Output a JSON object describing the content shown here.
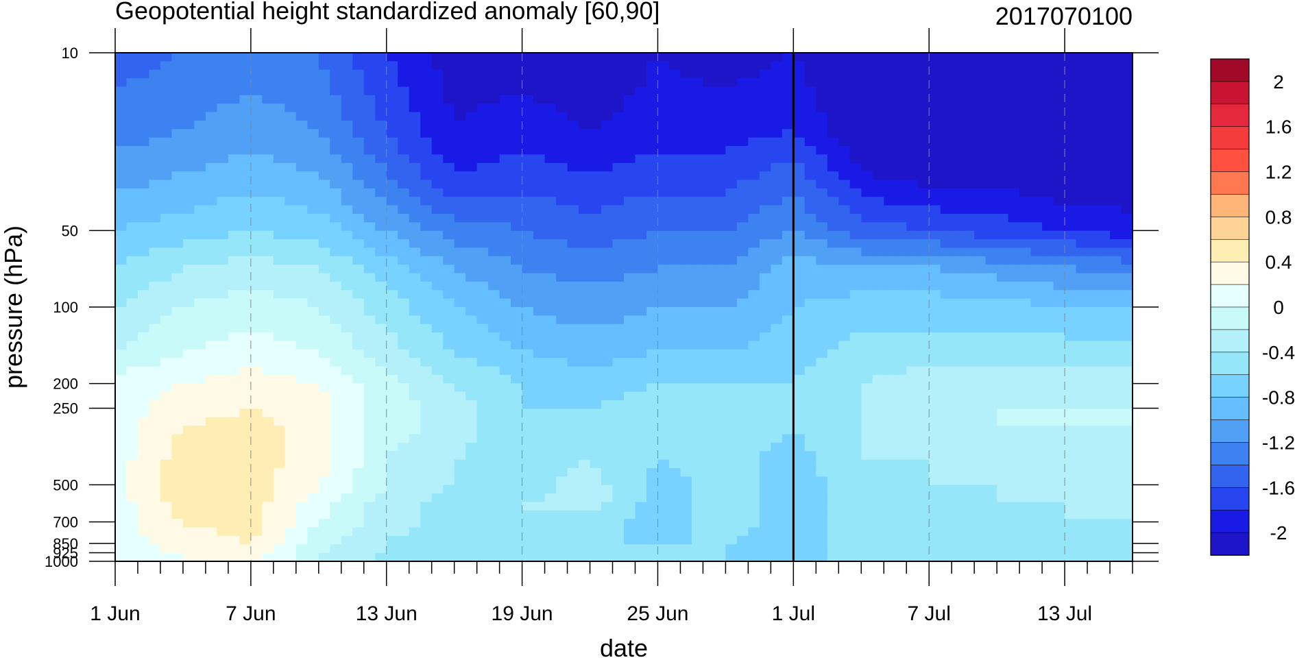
{
  "chart_data": {
    "type": "heatmap",
    "title": "Geopotential height standardized anomaly [60,90]",
    "subtitle": "2017070100",
    "xlabel": "date",
    "ylabel": "pressure (hPa)",
    "x_ticks": [
      "1 Jun",
      "7 Jun",
      "13 Jun",
      "19 Jun",
      "25 Jun",
      "1 Jul",
      "7 Jul",
      "13 Jul"
    ],
    "x_tick_days": [
      0,
      6,
      12,
      18,
      24,
      30,
      36,
      42
    ],
    "x_range_days": [
      0,
      45
    ],
    "y_ticks": [
      10,
      50,
      100,
      200,
      250,
      500,
      700,
      850,
      925,
      1000
    ],
    "y_tick_labels": [
      "10",
      "50",
      "100",
      "200",
      "250",
      "500",
      "700",
      "850",
      "925",
      "1000"
    ],
    "y_range": [
      1000,
      10
    ],
    "y_scale": "log",
    "grid": "dashed vertical lines at x ticks",
    "marker_line_day": 30,
    "colorbar": {
      "labels": [
        "2",
        "1.6",
        "1.2",
        "0.8",
        "0.4",
        "0",
        "-0.4",
        "-0.8",
        "-1.2",
        "-1.6",
        "-2"
      ],
      "levels": [
        -2.2,
        -2.0,
        -1.8,
        -1.6,
        -1.4,
        -1.2,
        -1.0,
        -0.8,
        -0.6,
        -0.4,
        -0.2,
        0.0,
        0.2,
        0.4,
        0.6,
        0.8,
        1.0,
        1.2,
        1.4,
        1.6,
        1.8,
        2.0,
        2.2
      ],
      "colors": [
        "#1e14c8",
        "#1a1ae6",
        "#2846f0",
        "#3264f0",
        "#3c82f0",
        "#50a0f5",
        "#64beff",
        "#78d2ff",
        "#96e6fa",
        "#b4f0fa",
        "#c8fafa",
        "#e6ffff",
        "#fffae6",
        "#ffeeb4",
        "#ffd296",
        "#ffb478",
        "#ff7850",
        "#ff5040",
        "#f53c3c",
        "#e6283c",
        "#c81432",
        "#a00a28"
      ]
    },
    "pressure_levels": [
      10,
      20,
      30,
      50,
      70,
      100,
      150,
      200,
      250,
      300,
      400,
      500,
      600,
      700,
      850,
      925,
      1000
    ],
    "values_note": "standardized anomaly (sigma) by day (rows = days 0..45 step 3) and pressure level",
    "day_index": [
      0,
      3,
      6,
      9,
      12,
      15,
      18,
      21,
      24,
      27,
      30,
      33,
      36,
      39,
      42,
      45
    ],
    "values": [
      [
        -1.5,
        -1.3,
        -1.1,
        -0.8,
        -0.6,
        -0.4,
        -0.2,
        0.1,
        0.1,
        0.1,
        0.1,
        0.1,
        0.1,
        0.1,
        0.1,
        0.1,
        0.1
      ],
      [
        -1.4,
        -1.2,
        -1.0,
        -0.7,
        -0.4,
        -0.2,
        0.0,
        0.2,
        0.3,
        0.4,
        0.5,
        0.5,
        0.5,
        0.4,
        0.3,
        0.2,
        0.2
      ],
      [
        -1.3,
        -1.1,
        -0.9,
        -0.6,
        -0.3,
        -0.1,
        0.1,
        0.3,
        0.4,
        0.5,
        0.5,
        0.5,
        0.5,
        0.5,
        0.4,
        0.3,
        0.3
      ],
      [
        -1.4,
        -1.2,
        -1.0,
        -0.7,
        -0.4,
        -0.2,
        0.0,
        0.2,
        0.3,
        0.3,
        0.3,
        0.2,
        0.1,
        0.0,
        -0.1,
        -0.2,
        -0.2
      ],
      [
        -1.8,
        -1.6,
        -1.4,
        -1.0,
        -0.7,
        -0.5,
        -0.3,
        -0.1,
        -0.1,
        -0.1,
        -0.2,
        -0.2,
        -0.3,
        -0.3,
        -0.4,
        -0.4,
        -0.5
      ],
      [
        -2.1,
        -2.0,
        -1.8,
        -1.3,
        -1.0,
        -0.8,
        -0.6,
        -0.4,
        -0.3,
        -0.3,
        -0.4,
        -0.4,
        -0.5,
        -0.5,
        -0.6,
        -0.6,
        -0.6
      ],
      [
        -2.1,
        -1.9,
        -1.7,
        -1.4,
        -1.2,
        -1.0,
        -0.8,
        -0.6,
        -0.6,
        -0.6,
        -0.5,
        -0.5,
        -0.4,
        -0.4,
        -0.5,
        -0.5,
        -0.5
      ],
      [
        -2.2,
        -2.0,
        -1.8,
        -1.5,
        -1.3,
        -1.1,
        -0.9,
        -0.7,
        -0.6,
        -0.5,
        -0.4,
        -0.3,
        -0.3,
        -0.5,
        -0.6,
        -0.6,
        -0.6
      ],
      [
        -2.0,
        -1.9,
        -1.7,
        -1.4,
        -1.2,
        -1.0,
        -0.8,
        -0.6,
        -0.5,
        -0.5,
        -0.6,
        -0.7,
        -0.7,
        -0.7,
        -0.6,
        -0.6,
        -0.6
      ],
      [
        -2.1,
        -1.9,
        -1.7,
        -1.4,
        -1.2,
        -1.0,
        -0.8,
        -0.6,
        -0.5,
        -0.5,
        -0.5,
        -0.5,
        -0.5,
        -0.5,
        -0.6,
        -0.6,
        -0.6
      ],
      [
        -2.0,
        -1.8,
        -1.5,
        -1.2,
        -0.9,
        -0.8,
        -0.7,
        -0.6,
        -0.6,
        -0.6,
        -0.7,
        -0.7,
        -0.7,
        -0.7,
        -0.7,
        -0.7,
        -0.7
      ],
      [
        -2.3,
        -2.2,
        -2.0,
        -1.5,
        -1.0,
        -0.7,
        -0.5,
        -0.4,
        -0.4,
        -0.4,
        -0.4,
        -0.5,
        -0.5,
        -0.5,
        -0.5,
        -0.5,
        -0.5
      ],
      [
        -2.3,
        -2.2,
        -2.1,
        -1.6,
        -1.0,
        -0.7,
        -0.5,
        -0.3,
        -0.3,
        -0.3,
        -0.4,
        -0.4,
        -0.5,
        -0.5,
        -0.6,
        -0.6,
        -0.6
      ],
      [
        -2.3,
        -2.3,
        -2.1,
        -1.7,
        -1.1,
        -0.7,
        -0.5,
        -0.3,
        -0.2,
        -0.2,
        -0.3,
        -0.4,
        -0.4,
        -0.5,
        -0.6,
        -0.6,
        -0.6
      ],
      [
        -2.3,
        -2.3,
        -2.2,
        -1.8,
        -1.2,
        -0.8,
        -0.5,
        -0.3,
        -0.2,
        -0.2,
        -0.3,
        -0.3,
        -0.4,
        -0.4,
        -0.5,
        -0.5,
        -0.6
      ],
      [
        -2.3,
        -2.3,
        -2.2,
        -1.9,
        -1.3,
        -0.8,
        -0.5,
        -0.3,
        -0.2,
        -0.2,
        -0.2,
        -0.3,
        -0.3,
        -0.4,
        -0.5,
        -0.6,
        -0.6
      ]
    ]
  }
}
